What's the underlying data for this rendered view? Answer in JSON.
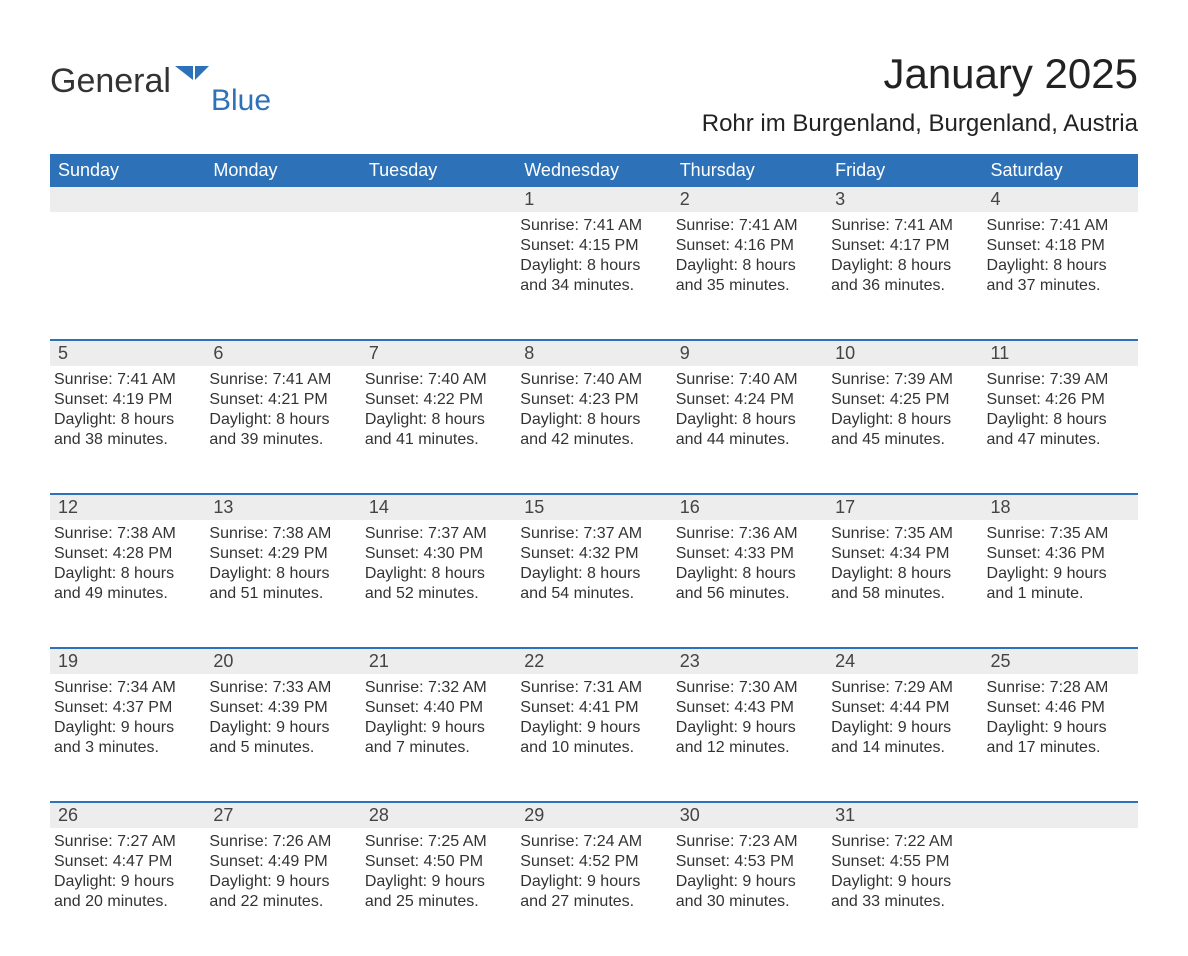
{
  "logo": {
    "word1": "General",
    "word2": "Blue",
    "icon_color": "#2d72b8"
  },
  "title": "January 2025",
  "location": "Rohr im Burgenland, Burgenland, Austria",
  "colors": {
    "header_bg": "#2d72b8",
    "header_text": "#ffffff",
    "daynum_bg": "#ededed",
    "body_bg": "#ffffff",
    "text": "#333333",
    "row_border": "#2d72b8"
  },
  "weekdays": [
    "Sunday",
    "Monday",
    "Tuesday",
    "Wednesday",
    "Thursday",
    "Friday",
    "Saturday"
  ],
  "weeks": [
    [
      null,
      null,
      null,
      {
        "day": "1",
        "sunrise": "Sunrise: 7:41 AM",
        "sunset": "Sunset: 4:15 PM",
        "dl1": "Daylight: 8 hours",
        "dl2": "and 34 minutes."
      },
      {
        "day": "2",
        "sunrise": "Sunrise: 7:41 AM",
        "sunset": "Sunset: 4:16 PM",
        "dl1": "Daylight: 8 hours",
        "dl2": "and 35 minutes."
      },
      {
        "day": "3",
        "sunrise": "Sunrise: 7:41 AM",
        "sunset": "Sunset: 4:17 PM",
        "dl1": "Daylight: 8 hours",
        "dl2": "and 36 minutes."
      },
      {
        "day": "4",
        "sunrise": "Sunrise: 7:41 AM",
        "sunset": "Sunset: 4:18 PM",
        "dl1": "Daylight: 8 hours",
        "dl2": "and 37 minutes."
      }
    ],
    [
      {
        "day": "5",
        "sunrise": "Sunrise: 7:41 AM",
        "sunset": "Sunset: 4:19 PM",
        "dl1": "Daylight: 8 hours",
        "dl2": "and 38 minutes."
      },
      {
        "day": "6",
        "sunrise": "Sunrise: 7:41 AM",
        "sunset": "Sunset: 4:21 PM",
        "dl1": "Daylight: 8 hours",
        "dl2": "and 39 minutes."
      },
      {
        "day": "7",
        "sunrise": "Sunrise: 7:40 AM",
        "sunset": "Sunset: 4:22 PM",
        "dl1": "Daylight: 8 hours",
        "dl2": "and 41 minutes."
      },
      {
        "day": "8",
        "sunrise": "Sunrise: 7:40 AM",
        "sunset": "Sunset: 4:23 PM",
        "dl1": "Daylight: 8 hours",
        "dl2": "and 42 minutes."
      },
      {
        "day": "9",
        "sunrise": "Sunrise: 7:40 AM",
        "sunset": "Sunset: 4:24 PM",
        "dl1": "Daylight: 8 hours",
        "dl2": "and 44 minutes."
      },
      {
        "day": "10",
        "sunrise": "Sunrise: 7:39 AM",
        "sunset": "Sunset: 4:25 PM",
        "dl1": "Daylight: 8 hours",
        "dl2": "and 45 minutes."
      },
      {
        "day": "11",
        "sunrise": "Sunrise: 7:39 AM",
        "sunset": "Sunset: 4:26 PM",
        "dl1": "Daylight: 8 hours",
        "dl2": "and 47 minutes."
      }
    ],
    [
      {
        "day": "12",
        "sunrise": "Sunrise: 7:38 AM",
        "sunset": "Sunset: 4:28 PM",
        "dl1": "Daylight: 8 hours",
        "dl2": "and 49 minutes."
      },
      {
        "day": "13",
        "sunrise": "Sunrise: 7:38 AM",
        "sunset": "Sunset: 4:29 PM",
        "dl1": "Daylight: 8 hours",
        "dl2": "and 51 minutes."
      },
      {
        "day": "14",
        "sunrise": "Sunrise: 7:37 AM",
        "sunset": "Sunset: 4:30 PM",
        "dl1": "Daylight: 8 hours",
        "dl2": "and 52 minutes."
      },
      {
        "day": "15",
        "sunrise": "Sunrise: 7:37 AM",
        "sunset": "Sunset: 4:32 PM",
        "dl1": "Daylight: 8 hours",
        "dl2": "and 54 minutes."
      },
      {
        "day": "16",
        "sunrise": "Sunrise: 7:36 AM",
        "sunset": "Sunset: 4:33 PM",
        "dl1": "Daylight: 8 hours",
        "dl2": "and 56 minutes."
      },
      {
        "day": "17",
        "sunrise": "Sunrise: 7:35 AM",
        "sunset": "Sunset: 4:34 PM",
        "dl1": "Daylight: 8 hours",
        "dl2": "and 58 minutes."
      },
      {
        "day": "18",
        "sunrise": "Sunrise: 7:35 AM",
        "sunset": "Sunset: 4:36 PM",
        "dl1": "Daylight: 9 hours",
        "dl2": "and 1 minute."
      }
    ],
    [
      {
        "day": "19",
        "sunrise": "Sunrise: 7:34 AM",
        "sunset": "Sunset: 4:37 PM",
        "dl1": "Daylight: 9 hours",
        "dl2": "and 3 minutes."
      },
      {
        "day": "20",
        "sunrise": "Sunrise: 7:33 AM",
        "sunset": "Sunset: 4:39 PM",
        "dl1": "Daylight: 9 hours",
        "dl2": "and 5 minutes."
      },
      {
        "day": "21",
        "sunrise": "Sunrise: 7:32 AM",
        "sunset": "Sunset: 4:40 PM",
        "dl1": "Daylight: 9 hours",
        "dl2": "and 7 minutes."
      },
      {
        "day": "22",
        "sunrise": "Sunrise: 7:31 AM",
        "sunset": "Sunset: 4:41 PM",
        "dl1": "Daylight: 9 hours",
        "dl2": "and 10 minutes."
      },
      {
        "day": "23",
        "sunrise": "Sunrise: 7:30 AM",
        "sunset": "Sunset: 4:43 PM",
        "dl1": "Daylight: 9 hours",
        "dl2": "and 12 minutes."
      },
      {
        "day": "24",
        "sunrise": "Sunrise: 7:29 AM",
        "sunset": "Sunset: 4:44 PM",
        "dl1": "Daylight: 9 hours",
        "dl2": "and 14 minutes."
      },
      {
        "day": "25",
        "sunrise": "Sunrise: 7:28 AM",
        "sunset": "Sunset: 4:46 PM",
        "dl1": "Daylight: 9 hours",
        "dl2": "and 17 minutes."
      }
    ],
    [
      {
        "day": "26",
        "sunrise": "Sunrise: 7:27 AM",
        "sunset": "Sunset: 4:47 PM",
        "dl1": "Daylight: 9 hours",
        "dl2": "and 20 minutes."
      },
      {
        "day": "27",
        "sunrise": "Sunrise: 7:26 AM",
        "sunset": "Sunset: 4:49 PM",
        "dl1": "Daylight: 9 hours",
        "dl2": "and 22 minutes."
      },
      {
        "day": "28",
        "sunrise": "Sunrise: 7:25 AM",
        "sunset": "Sunset: 4:50 PM",
        "dl1": "Daylight: 9 hours",
        "dl2": "and 25 minutes."
      },
      {
        "day": "29",
        "sunrise": "Sunrise: 7:24 AM",
        "sunset": "Sunset: 4:52 PM",
        "dl1": "Daylight: 9 hours",
        "dl2": "and 27 minutes."
      },
      {
        "day": "30",
        "sunrise": "Sunrise: 7:23 AM",
        "sunset": "Sunset: 4:53 PM",
        "dl1": "Daylight: 9 hours",
        "dl2": "and 30 minutes."
      },
      {
        "day": "31",
        "sunrise": "Sunrise: 7:22 AM",
        "sunset": "Sunset: 4:55 PM",
        "dl1": "Daylight: 9 hours",
        "dl2": "and 33 minutes."
      },
      null
    ]
  ]
}
